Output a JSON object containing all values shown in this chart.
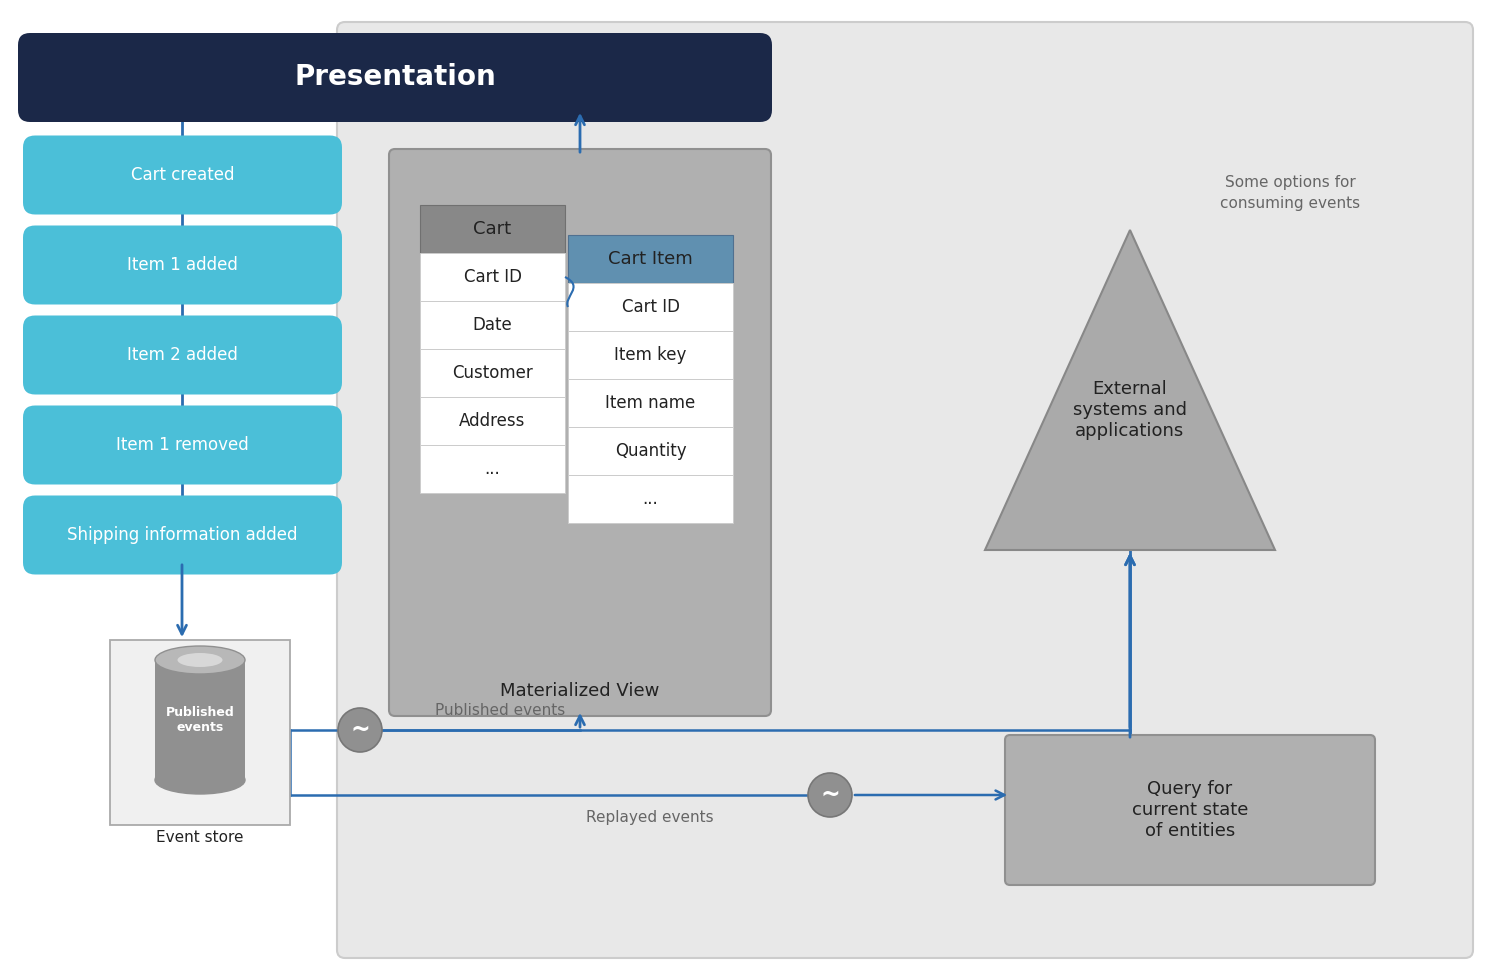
{
  "white": "#ffffff",
  "panel_bg": "#e8e8e8",
  "dark_navy": "#1b2848",
  "cyan_blue": "#4bbfd8",
  "blue_arrow": "#2b6cb0",
  "gray_table_bg": "#b0b0b0",
  "gray_header": "#888888",
  "cart_item_hdr_color": "#6090b0",
  "tilde_color": "#909090",
  "event_store_bg": "#f0f0f0",
  "cyl_body": "#909090",
  "cyl_top": "#b8b8b8",
  "query_box_bg": "#b0b0b0",
  "ext_tri_color": "#aaaaaa",
  "text_dark": "#222222",
  "text_white": "#ffffff",
  "text_gray": "#666666",
  "border_gray": "#aaaaaa",
  "cart_table_header": "Cart",
  "cart_table_rows": [
    "Cart ID",
    "Date",
    "Customer",
    "Address",
    "..."
  ],
  "cart_item_header": "Cart Item",
  "cart_item_rows": [
    "Cart ID",
    "Item key",
    "Item name",
    "Quantity",
    "..."
  ],
  "presentation_text": "Presentation",
  "event_labels": [
    "Cart created",
    "Item 1 added",
    "Item 2 added",
    "Item 1 removed",
    "Shipping information added"
  ],
  "mat_view_label": "Materialized View",
  "external_label": "External\nsystems and\napplications",
  "event_store_label": "Event store",
  "published_label": "Published\nevents",
  "published_events_text": "Published events",
  "replayed_events_text": "Replayed events",
  "query_label": "Query for\ncurrent state\nof entities",
  "options_text": "Some options for\nconsuming events"
}
